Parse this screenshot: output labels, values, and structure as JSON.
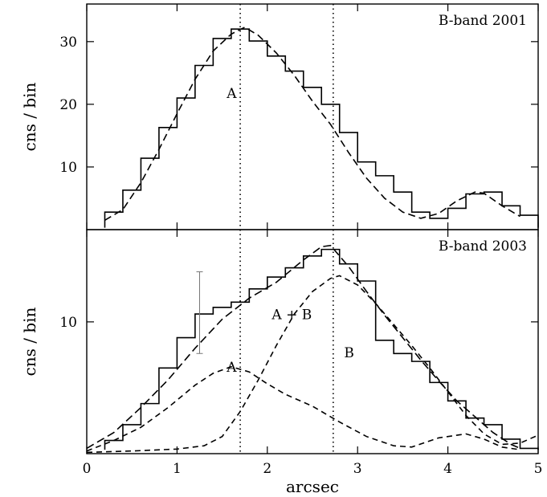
{
  "chart_data": [
    {
      "type": "line",
      "title": "B-band 2001",
      "xlabel": "",
      "ylabel": "cns / bin",
      "xlim": [
        0,
        5
      ],
      "ylim": [
        0,
        36
      ],
      "yticks": [
        "10",
        "20",
        "30"
      ],
      "annotations": [
        {
          "text": "A",
          "x": 1.55,
          "y": 21
        }
      ],
      "vlines": [
        1.7,
        2.73
      ],
      "histogram": {
        "edges": [
          0.2,
          0.4,
          0.6,
          0.8,
          1.0,
          1.2,
          1.4,
          1.6,
          1.8,
          2.0,
          2.2,
          2.4,
          2.6,
          2.8,
          3.0,
          3.2,
          3.4,
          3.6,
          3.8,
          4.0,
          4.2,
          4.4,
          4.6,
          4.8
        ],
        "values": [
          2.8,
          6.3,
          11.4,
          16.3,
          21.0,
          26.2,
          30.5,
          32.0,
          30.1,
          27.7,
          25.3,
          22.7,
          20.0,
          15.5,
          10.8,
          8.6,
          6.0,
          2.8,
          1.8,
          3.4,
          5.7,
          6.0,
          3.8,
          2.3
        ]
      },
      "model": {
        "x": [
          0.2,
          0.4,
          0.6,
          0.8,
          1.0,
          1.2,
          1.4,
          1.6,
          1.75,
          1.9,
          2.1,
          2.3,
          2.5,
          2.7,
          2.9,
          3.1,
          3.3,
          3.5,
          3.7,
          3.9,
          4.1,
          4.3,
          4.4,
          4.6,
          4.8
        ],
        "y": [
          1.5,
          3.2,
          7.5,
          12.8,
          18.5,
          24.0,
          28.5,
          31.2,
          32.3,
          31.0,
          28.2,
          24.6,
          20.5,
          16.8,
          12.3,
          8.2,
          5.0,
          2.8,
          1.8,
          2.6,
          4.6,
          6.0,
          5.8,
          3.8,
          2.1
        ]
      }
    },
    {
      "type": "line",
      "title": "B-band 2003",
      "xlabel": "arcsec",
      "ylabel": "cns / bin",
      "xlim": [
        0,
        5
      ],
      "ylim": [
        0,
        17
      ],
      "xticks": [
        "0",
        "1",
        "2",
        "3",
        "4",
        "5"
      ],
      "yticks": [
        "10"
      ],
      "annotations": [
        {
          "text": "A + B",
          "x": 2.05,
          "y": 10.2
        },
        {
          "text": "A",
          "x": 1.55,
          "y": 6.2
        },
        {
          "text": "B",
          "x": 2.85,
          "y": 7.3
        }
      ],
      "vlines": [
        1.7,
        2.73
      ],
      "error_bar": {
        "x": 1.25,
        "y_low": 7.6,
        "y_high": 13.8
      },
      "histogram": {
        "edges": [
          0.2,
          0.4,
          0.6,
          0.8,
          1.0,
          1.2,
          1.4,
          1.6,
          1.8,
          2.0,
          2.2,
          2.4,
          2.6,
          2.8,
          3.0,
          3.2,
          3.4,
          3.6,
          3.8,
          4.0,
          4.2,
          4.4,
          4.6,
          4.8
        ],
        "values": [
          1.0,
          2.2,
          3.8,
          6.5,
          8.8,
          10.6,
          11.1,
          11.5,
          12.5,
          13.4,
          14.1,
          15.0,
          15.5,
          14.4,
          13.1,
          8.6,
          7.6,
          7.0,
          5.4,
          4.0,
          2.7,
          2.2,
          1.1,
          0.4
        ]
      },
      "series": [
        {
          "name": "A + B",
          "x": [
            0.0,
            0.3,
            0.6,
            0.9,
            1.2,
            1.5,
            1.8,
            2.1,
            2.4,
            2.6,
            2.7,
            2.9,
            3.1,
            3.3,
            3.5,
            3.7,
            3.9,
            4.1,
            4.3,
            4.5,
            4.7,
            4.8
          ],
          "y": [
            0.4,
            1.6,
            3.5,
            5.6,
            8.0,
            10.2,
            11.8,
            13.0,
            14.7,
            15.7,
            15.8,
            14.2,
            12.3,
            10.5,
            8.8,
            7.1,
            5.5,
            4.0,
            2.8,
            1.6,
            0.7,
            0.4
          ]
        },
        {
          "name": "A",
          "x": [
            0.0,
            0.3,
            0.6,
            0.9,
            1.2,
            1.4,
            1.6,
            1.8,
            2.0,
            2.2,
            2.5,
            2.8,
            3.1,
            3.4,
            3.6,
            3.9,
            4.2,
            4.4,
            4.6,
            4.8
          ],
          "y": [
            0.2,
            1.0,
            2.0,
            3.5,
            5.2,
            6.1,
            6.6,
            6.2,
            5.3,
            4.5,
            3.6,
            2.4,
            1.3,
            0.6,
            0.5,
            1.2,
            1.5,
            1.1,
            0.5,
            0.3
          ]
        },
        {
          "name": "B",
          "x": [
            0.0,
            0.5,
            1.0,
            1.3,
            1.5,
            1.7,
            1.9,
            2.1,
            2.3,
            2.5,
            2.7,
            2.8,
            3.0,
            3.2,
            3.4,
            3.6,
            3.8,
            4.0,
            4.2,
            4.4,
            4.6,
            4.8,
            5.0
          ],
          "y": [
            0.1,
            0.2,
            0.35,
            0.6,
            1.3,
            3.2,
            5.6,
            8.2,
            10.6,
            12.3,
            13.3,
            13.5,
            12.8,
            11.4,
            9.8,
            8.2,
            6.5,
            4.7,
            2.9,
            1.5,
            0.7,
            0.8,
            1.4
          ]
        }
      ]
    }
  ]
}
